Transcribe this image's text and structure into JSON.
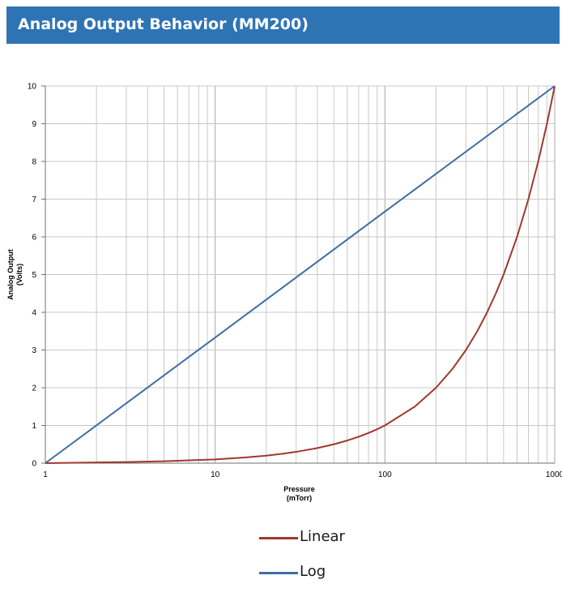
{
  "header": {
    "title": "Analog Output Behavior (MM200)"
  },
  "colors": {
    "header_background": "#2e74b5",
    "linear_series": "#a0382e",
    "log_series": "#3c6ea5",
    "grid": "#c8c8c8"
  },
  "chart_data": {
    "type": "line",
    "title": "",
    "xlabel": "Pressure\n(mTorr)",
    "ylabel": "Analog Output\n(Volts)",
    "x_scale": "log",
    "xlim": [
      1,
      1000
    ],
    "ylim": [
      0,
      10
    ],
    "x_ticks": [
      "1",
      "10",
      "100",
      "1000"
    ],
    "y_ticks": [
      "0",
      "1",
      "2",
      "3",
      "4",
      "5",
      "6",
      "7",
      "8",
      "9",
      "10"
    ],
    "grid": true,
    "legend_position": "bottom-center",
    "series": [
      {
        "name": "Linear",
        "color": "#a0382e",
        "x": [
          1,
          2,
          3,
          5,
          10,
          15,
          20,
          25,
          30,
          40,
          50,
          60,
          70,
          80,
          90,
          100,
          150,
          200,
          250,
          300,
          350,
          400,
          450,
          500,
          600,
          700,
          800,
          900,
          1000
        ],
        "y": [
          0,
          0.02,
          0.03,
          0.05,
          0.1,
          0.15,
          0.2,
          0.25,
          0.3,
          0.4,
          0.5,
          0.6,
          0.7,
          0.8,
          0.9,
          1,
          1.5,
          2,
          2.5,
          3,
          3.5,
          4,
          4.5,
          5,
          6,
          7,
          8,
          9,
          10
        ]
      },
      {
        "name": "Log",
        "color": "#3c6ea5",
        "x": [
          1,
          10,
          100,
          1000
        ],
        "y": [
          0,
          3.33,
          6.67,
          10
        ]
      }
    ]
  }
}
